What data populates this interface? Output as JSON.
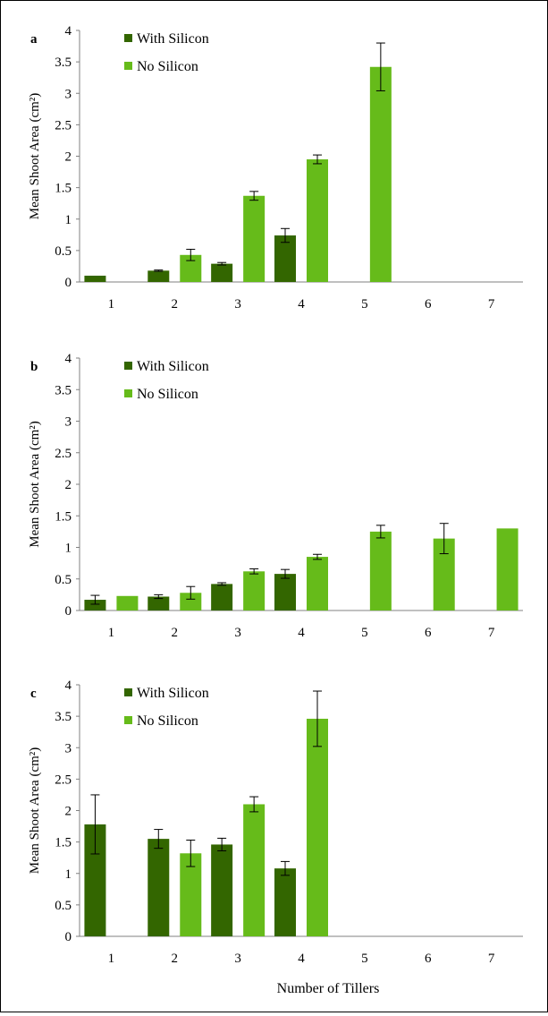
{
  "figure": {
    "xlabel": "Number of Tillers"
  },
  "colors": {
    "with_silicon": "#336600",
    "no_silicon": "#66bb1a",
    "axis": "#808080"
  },
  "chart_data": [
    {
      "type": "bar",
      "panel_label": "a",
      "categories": [
        "1",
        "2",
        "3",
        "4",
        "5",
        "6",
        "7"
      ],
      "ylabel": "Mean Shoot Area (cm²)",
      "ylim": [
        0,
        4
      ],
      "yticks": [
        "0",
        "0.5",
        "1",
        "1.5",
        "2",
        "2.5",
        "3",
        "3.5",
        "4"
      ],
      "legend": "top-left",
      "grid": false,
      "series": [
        {
          "name": "With Silicon",
          "values": [
            0.1,
            0.18,
            0.29,
            0.74,
            null,
            null,
            null
          ],
          "errors": [
            0.0,
            0.01,
            0.02,
            0.11,
            null,
            null,
            null
          ]
        },
        {
          "name": "No Silicon",
          "values": [
            null,
            0.43,
            1.37,
            1.95,
            3.42,
            null,
            null
          ],
          "errors": [
            null,
            0.09,
            0.07,
            0.07,
            0.38,
            null,
            null
          ]
        }
      ]
    },
    {
      "type": "bar",
      "panel_label": "b",
      "categories": [
        "1",
        "2",
        "3",
        "4",
        "5",
        "6",
        "7"
      ],
      "ylabel": "Mean Shoot Area (cm²)",
      "ylim": [
        0,
        4
      ],
      "yticks": [
        "0",
        "0.5",
        "1",
        "1.5",
        "2",
        "2.5",
        "3",
        "3.5",
        "4"
      ],
      "legend": "top-left",
      "grid": false,
      "series": [
        {
          "name": "With Silicon",
          "values": [
            0.17,
            0.22,
            0.42,
            0.58,
            null,
            null,
            null
          ],
          "errors": [
            0.07,
            0.03,
            0.02,
            0.07,
            null,
            null,
            null
          ]
        },
        {
          "name": "No Silicon",
          "values": [
            0.23,
            0.28,
            0.62,
            0.85,
            1.25,
            1.14,
            1.3
          ],
          "errors": [
            0.0,
            0.1,
            0.04,
            0.04,
            0.1,
            0.24,
            0.0
          ]
        }
      ]
    },
    {
      "type": "bar",
      "panel_label": "c",
      "categories": [
        "1",
        "2",
        "3",
        "4",
        "5",
        "6",
        "7"
      ],
      "ylabel": "Mean Shoot Area (cm²)",
      "ylim": [
        0,
        4
      ],
      "yticks": [
        "0",
        "0.5",
        "1",
        "1.5",
        "2",
        "2.5",
        "3",
        "3.5",
        "4"
      ],
      "legend": "top-left",
      "grid": false,
      "series": [
        {
          "name": "With Silicon",
          "values": [
            1.78,
            1.55,
            1.46,
            1.08,
            null,
            null,
            null
          ],
          "errors": [
            0.47,
            0.15,
            0.1,
            0.11,
            null,
            null,
            null
          ]
        },
        {
          "name": "No Silicon",
          "values": [
            null,
            1.32,
            2.1,
            3.46,
            null,
            null,
            null
          ],
          "errors": [
            null,
            0.21,
            0.12,
            0.44,
            null,
            null,
            null
          ]
        }
      ]
    }
  ]
}
